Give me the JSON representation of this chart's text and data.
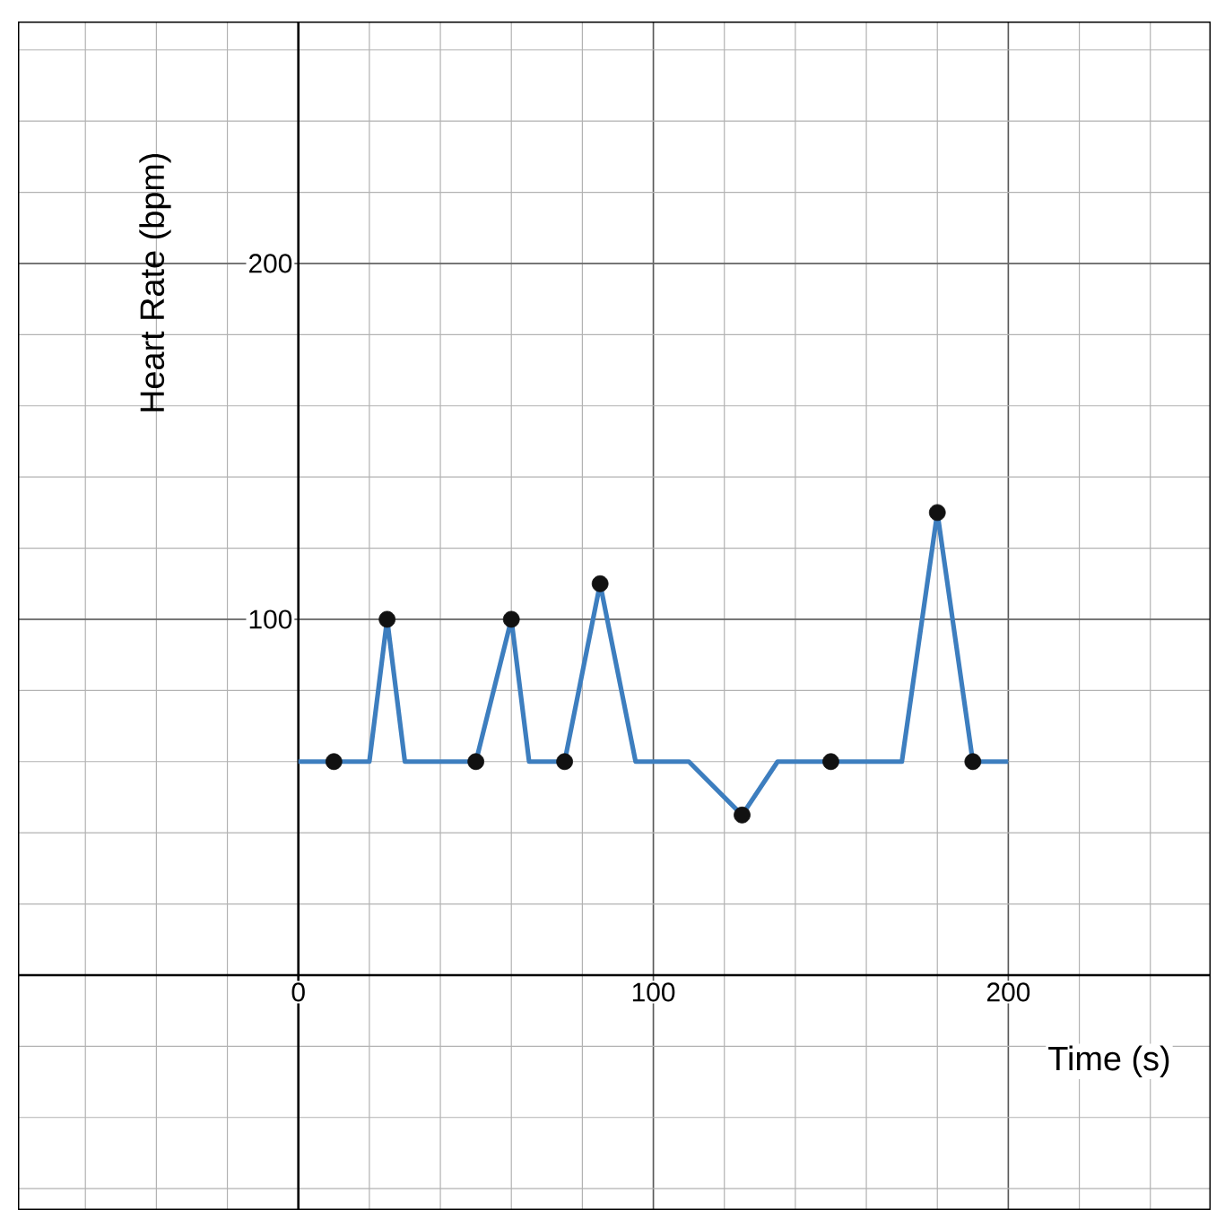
{
  "chart_data": {
    "type": "line",
    "xlabel": "Time (s)",
    "ylabel": "Heart Rate (bpm)",
    "xlim": [
      -79,
      257
    ],
    "ylim": [
      -66,
      268
    ],
    "xticks": [
      0,
      100,
      200
    ],
    "yticks": [
      100,
      200
    ],
    "grid": true,
    "series": [
      {
        "color": "#3d7ebf",
        "marker": "none",
        "x": [
          0,
          20,
          25,
          30,
          50,
          60,
          65,
          75,
          85,
          95,
          110,
          125,
          135,
          150,
          170,
          180,
          190,
          200
        ],
        "values": [
          60,
          60,
          100,
          60,
          60,
          100,
          60,
          60,
          110,
          60,
          60,
          45,
          60,
          60,
          60,
          130,
          60,
          60
        ]
      },
      {
        "type": "scatter",
        "color": "#111111",
        "marker": "circle",
        "x": [
          10,
          25,
          50,
          60,
          75,
          85,
          125,
          150,
          180,
          190
        ],
        "values": [
          60,
          100,
          60,
          100,
          60,
          110,
          45,
          60,
          130,
          60
        ]
      }
    ]
  }
}
